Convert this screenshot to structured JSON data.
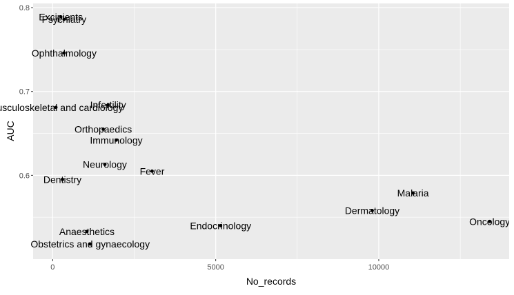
{
  "chart_data": {
    "type": "scatter",
    "title": "",
    "xlabel": "No_records",
    "ylabel": "AUC",
    "xlim": [
      -600,
      14000
    ],
    "ylim": [
      0.5,
      0.805
    ],
    "x_ticks": [
      0,
      5000,
      10000
    ],
    "x_tick_labels": [
      "0",
      "5000",
      "10000"
    ],
    "y_ticks": [
      0.6,
      0.7,
      0.8
    ],
    "y_tick_labels": [
      "0.6",
      "0.7",
      "0.8"
    ],
    "grid": true,
    "legend": "none",
    "panel_color": "#ebebeb",
    "point_color": "#000000",
    "points": [
      {
        "label": "Excipients",
        "x": 250,
        "y": 0.789
      },
      {
        "label": "Psychiatry",
        "x": 350,
        "y": 0.786
      },
      {
        "label": "Ophthalmology",
        "x": 350,
        "y": 0.746
      },
      {
        "label": "Infertility",
        "x": 1700,
        "y": 0.684
      },
      {
        "label": "Musculoskeletal and cardiology",
        "x": 100,
        "y": 0.681
      },
      {
        "label": "Orthopaedics",
        "x": 1550,
        "y": 0.655
      },
      {
        "label": "Immunology",
        "x": 1950,
        "y": 0.642
      },
      {
        "label": "Neurology",
        "x": 1600,
        "y": 0.613
      },
      {
        "label": "Fever",
        "x": 3050,
        "y": 0.605
      },
      {
        "label": "Dentistry",
        "x": 300,
        "y": 0.595
      },
      {
        "label": "Malaria",
        "x": 11050,
        "y": 0.579
      },
      {
        "label": "Dermatology",
        "x": 9800,
        "y": 0.558
      },
      {
        "label": "Oncology",
        "x": 13400,
        "y": 0.545
      },
      {
        "label": "Endocrinology",
        "x": 5150,
        "y": 0.54
      },
      {
        "label": "Anaesthetics",
        "x": 1050,
        "y": 0.533
      },
      {
        "label": "Obstetrics and gynaecology",
        "x": 1150,
        "y": 0.518
      }
    ]
  }
}
